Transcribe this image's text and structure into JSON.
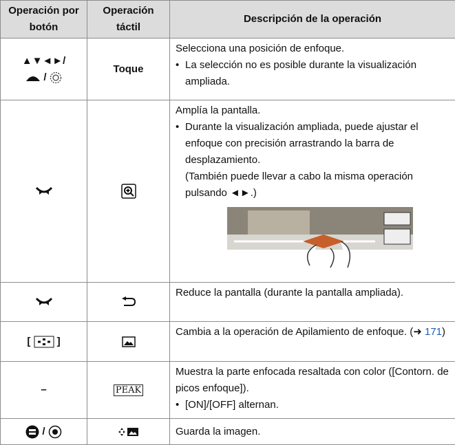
{
  "table": {
    "header": [
      "Operación por botón",
      "Operación táctil",
      "Descripción de la operación"
    ],
    "rows": [
      {
        "button": [
          "▲▼◄►/",
          "/"
        ],
        "touch": "Toque",
        "description": {
          "text": "Selecciona una posición de enfoque.",
          "bullets": [
            "La selección no es posible durante la visualización ampliada."
          ]
        }
      },
      {
        "description": {
          "text": "Amplía la pantalla.",
          "bullets": [
            "Durante la visualización ampliada, puede ajustar el enfoque con precisión arrastrando la barra de desplazamiento."
          ],
          "note": "(También puede llevar a cabo la misma operación pulsando ◄►.)"
        }
      },
      {
        "description": {
          "text": "Reduce la pantalla (durante la pantalla ampliada)."
        }
      },
      {
        "button": [
          "[",
          "]"
        ],
        "description": {
          "text": "Cambia a la operación de Apilamiento de enfoque.",
          "ref_open": "(➜",
          "ref": "171",
          "ref_close": ")"
        }
      },
      {
        "button": [
          "–"
        ],
        "touch": "PEAK",
        "description": {
          "text": "Muestra la parte enfocada resaltada con color ([Contorn. de picos enfoque]).",
          "bullets": [
            "[ON]/[OFF] alternan."
          ]
        }
      },
      {
        "button": [
          "/"
        ],
        "description": {
          "text": "Guarda la imagen."
        }
      }
    ]
  }
}
